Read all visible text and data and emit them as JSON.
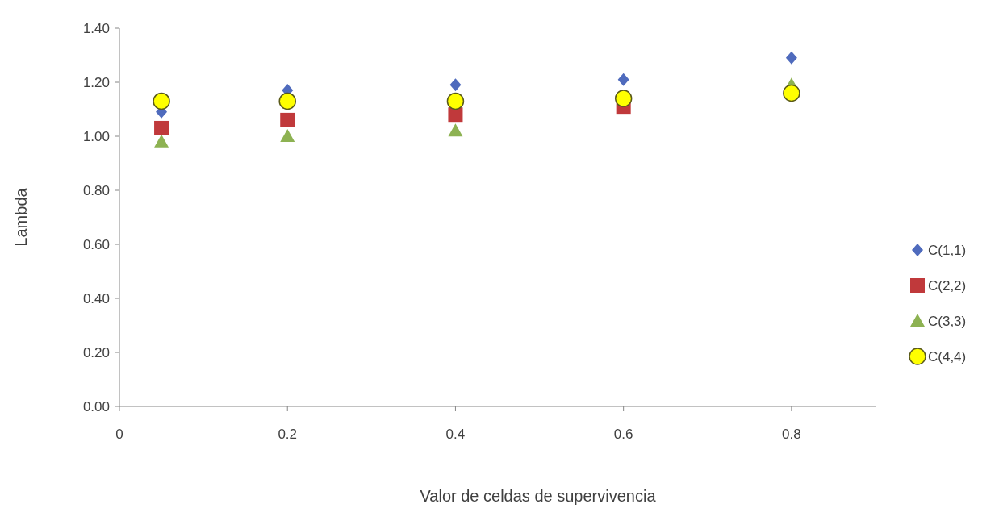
{
  "chart_data": {
    "type": "scatter",
    "xlabel": "Valor de celdas de supervivencia",
    "ylabel": "Lambda",
    "x": [
      0.05,
      0.2,
      0.4,
      0.6,
      0.8
    ],
    "series": [
      {
        "name": "C(1,1)",
        "color": "#4f6bbd",
        "marker": "diamond",
        "values": [
          1.09,
          1.17,
          1.19,
          1.21,
          1.29
        ]
      },
      {
        "name": "C(2,2)",
        "color": "#c0393b",
        "marker": "square",
        "values": [
          1.03,
          1.06,
          1.08,
          1.11,
          null
        ]
      },
      {
        "name": "C(3,3)",
        "color": "#8db252",
        "marker": "triangle",
        "values": [
          0.98,
          1.0,
          1.02,
          null,
          1.19
        ]
      },
      {
        "name": "C(4,4)",
        "color": "#ffff00",
        "marker": "circle",
        "values": [
          1.13,
          1.13,
          1.13,
          1.14,
          1.16
        ]
      }
    ],
    "xlim": [
      0,
      0.9
    ],
    "xticks": [
      {
        "value": 0,
        "label": "0"
      },
      {
        "value": 0.2,
        "label": "0.2"
      },
      {
        "value": 0.4,
        "label": "0.4"
      },
      {
        "value": 0.6,
        "label": "0.6"
      },
      {
        "value": 0.8,
        "label": "0.8"
      }
    ],
    "ylim": [
      0,
      1.4
    ],
    "yticks": [
      {
        "value": 0,
        "label": "0.00"
      },
      {
        "value": 0.2,
        "label": "0.20"
      },
      {
        "value": 0.4,
        "label": "0.40"
      },
      {
        "value": 0.6,
        "label": "0.60"
      },
      {
        "value": 0.8,
        "label": "0.80"
      },
      {
        "value": 1,
        "label": "1.00"
      },
      {
        "value": 1.2,
        "label": "1.20"
      },
      {
        "value": 1.4,
        "label": "1.40"
      }
    ],
    "grid": false,
    "legend": "right"
  }
}
